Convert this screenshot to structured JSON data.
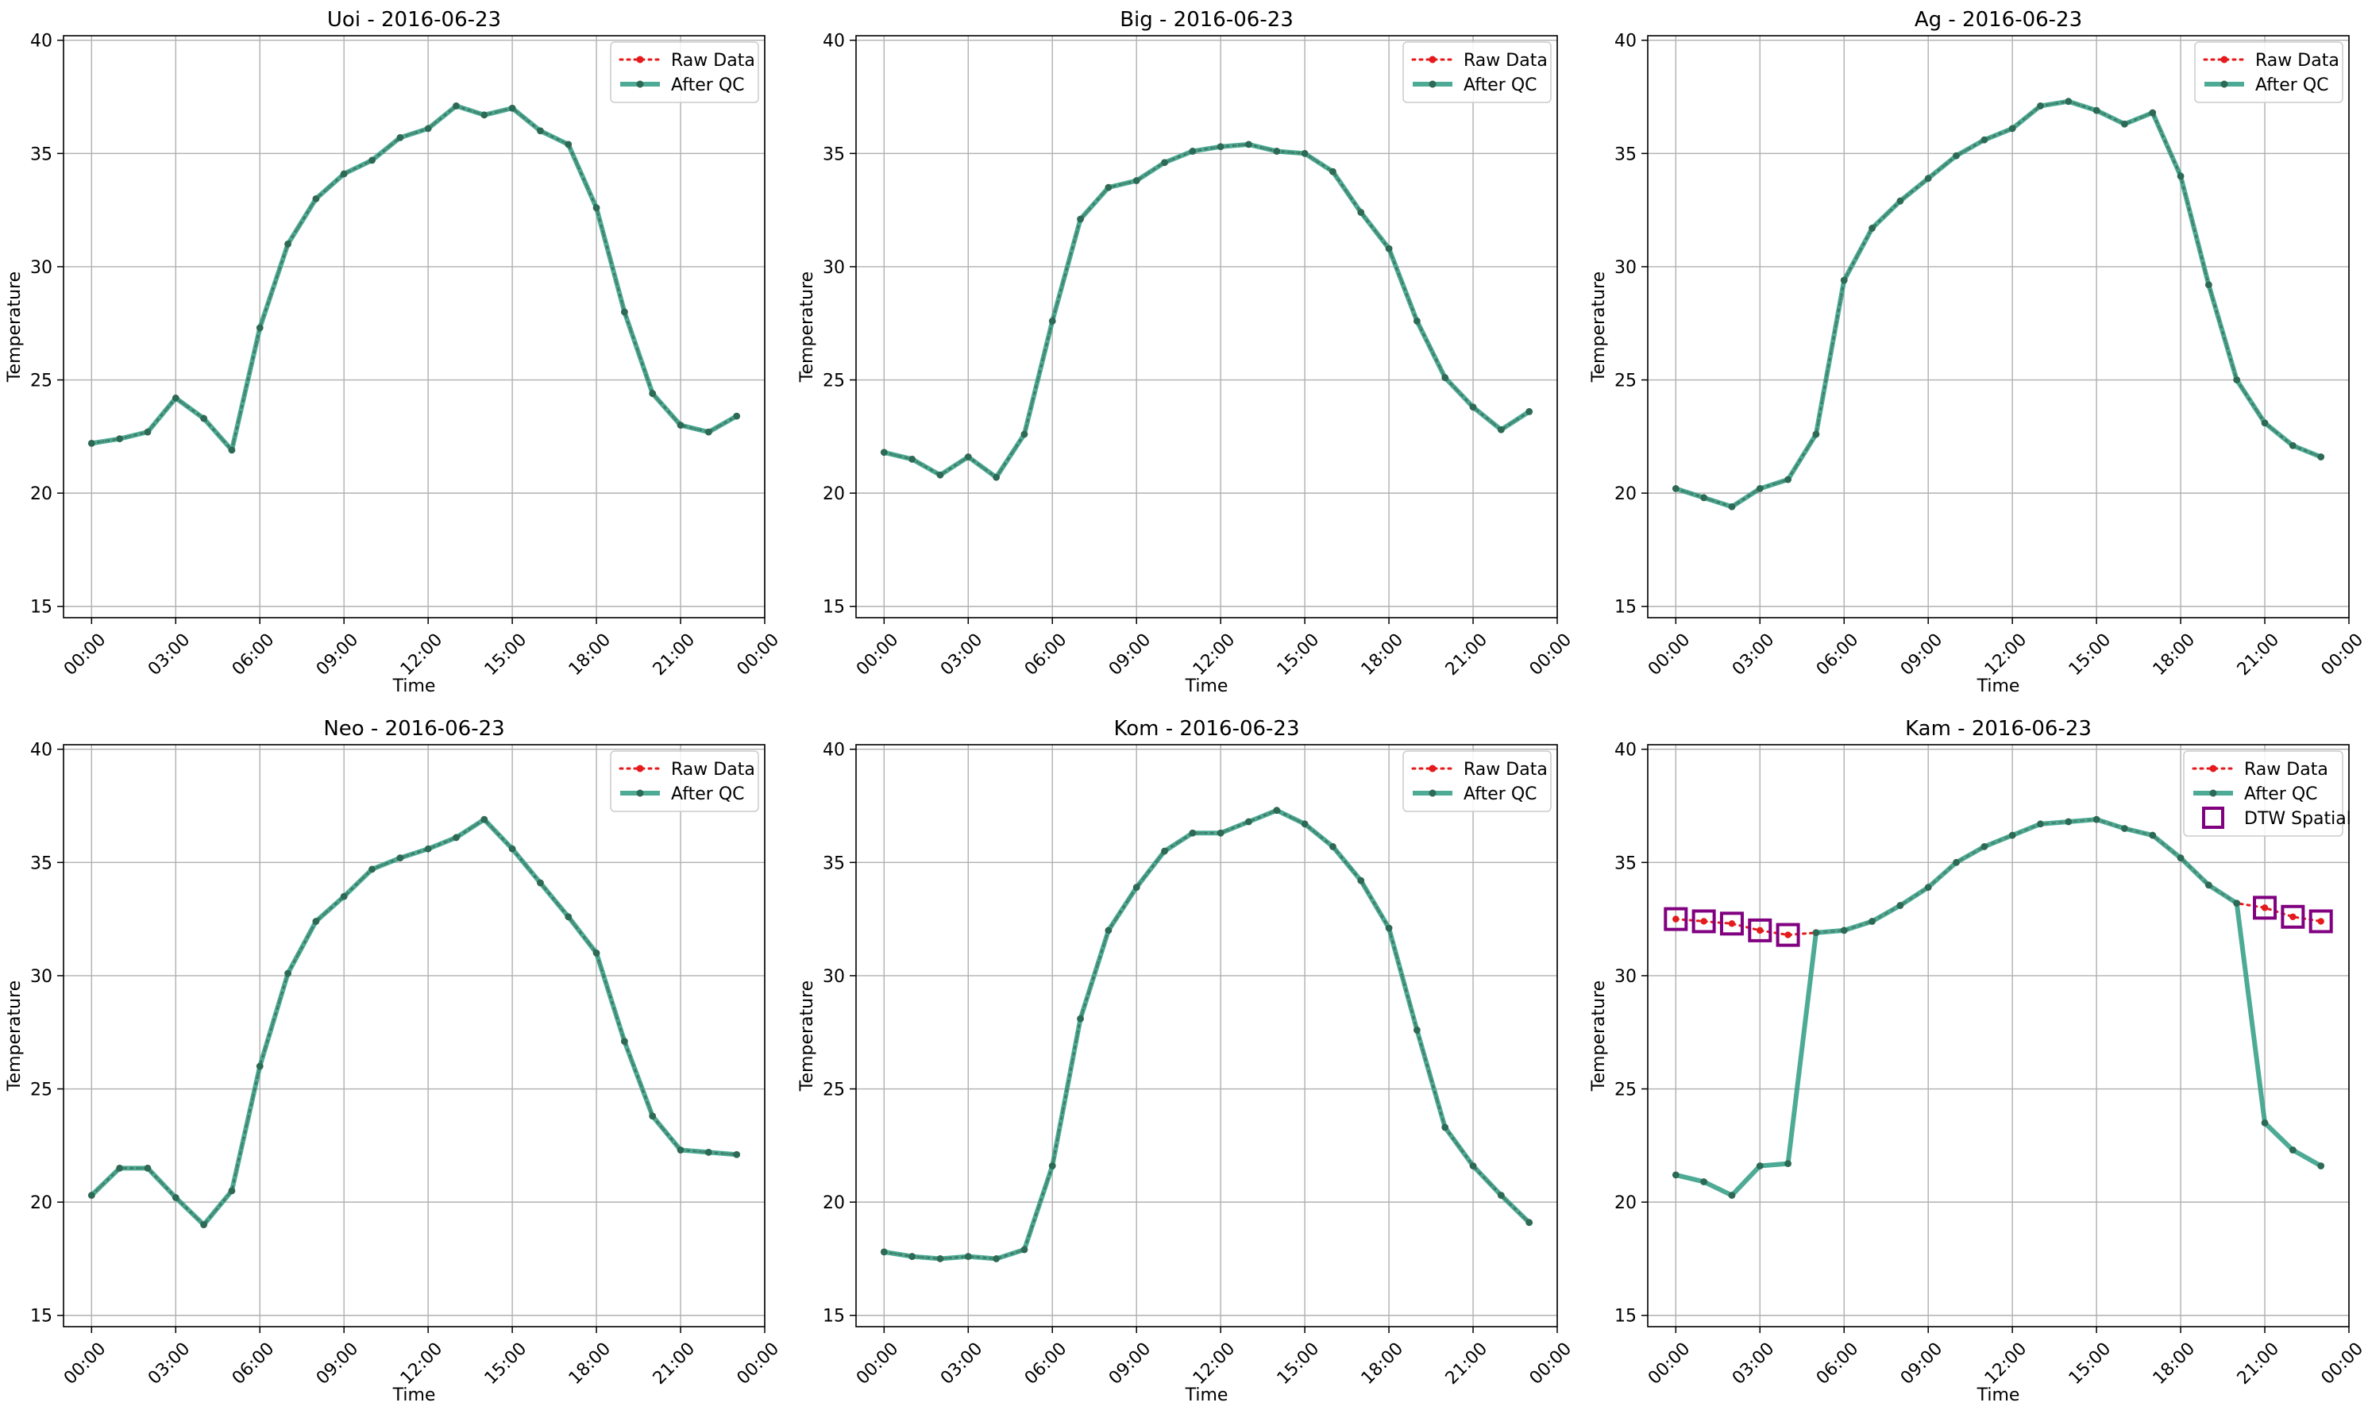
{
  "legend_labels": {
    "raw": "Raw Data",
    "qc": "After QC",
    "dtw": "DTW Spatial"
  },
  "colors": {
    "raw": "#e41a1c",
    "qc": "#2e9c82",
    "qc_dot": "#2d6a55",
    "dtw": "#800080",
    "grid": "#b0b0b0"
  },
  "chart_data": [
    {
      "type": "line",
      "title": "Uoi - 2016-06-23",
      "xlabel": "Time",
      "ylabel": "Temperature",
      "xticks": [
        "00:00",
        "03:00",
        "06:00",
        "09:00",
        "12:00",
        "15:00",
        "18:00",
        "21:00",
        "00:00"
      ],
      "yticks": [
        15,
        20,
        25,
        30,
        35,
        40
      ],
      "xlim": [
        -1,
        24
      ],
      "ylim": [
        14.5,
        40.2
      ],
      "grid": true,
      "legend_position": "top-right",
      "x": [
        0,
        1,
        2,
        3,
        4,
        5,
        6,
        7,
        8,
        9,
        10,
        11,
        12,
        13,
        14,
        15,
        16,
        17,
        18,
        19,
        20,
        21,
        22,
        23
      ],
      "series": [
        {
          "name": "Raw Data",
          "values": [
            22.2,
            22.4,
            22.7,
            24.2,
            23.3,
            21.9,
            27.3,
            31.0,
            33.0,
            34.1,
            34.7,
            35.7,
            36.1,
            37.1,
            36.7,
            37.0,
            36.0,
            35.4,
            32.6,
            28.0,
            24.4,
            23.0,
            22.7,
            23.4
          ]
        },
        {
          "name": "After QC",
          "values": [
            22.2,
            22.4,
            22.7,
            24.2,
            23.3,
            21.9,
            27.3,
            31.0,
            33.0,
            34.1,
            34.7,
            35.7,
            36.1,
            37.1,
            36.7,
            37.0,
            36.0,
            35.4,
            32.6,
            28.0,
            24.4,
            23.0,
            22.7,
            23.4
          ]
        }
      ]
    },
    {
      "type": "line",
      "title": "Big - 2016-06-23",
      "xlabel": "Time",
      "ylabel": "Temperature",
      "xticks": [
        "00:00",
        "03:00",
        "06:00",
        "09:00",
        "12:00",
        "15:00",
        "18:00",
        "21:00",
        "00:00"
      ],
      "yticks": [
        15,
        20,
        25,
        30,
        35,
        40
      ],
      "xlim": [
        -1,
        24
      ],
      "ylim": [
        14.5,
        40.2
      ],
      "grid": true,
      "legend_position": "top-right",
      "x": [
        0,
        1,
        2,
        3,
        4,
        5,
        6,
        7,
        8,
        9,
        10,
        11,
        12,
        13,
        14,
        15,
        16,
        17,
        18,
        19,
        20,
        21,
        22,
        23
      ],
      "series": [
        {
          "name": "Raw Data",
          "values": [
            21.8,
            21.5,
            20.8,
            21.6,
            20.7,
            22.6,
            27.6,
            32.1,
            33.5,
            33.8,
            34.6,
            35.1,
            35.3,
            35.4,
            35.1,
            35.0,
            34.2,
            32.4,
            30.8,
            27.6,
            25.1,
            23.8,
            22.8,
            23.6
          ]
        },
        {
          "name": "After QC",
          "values": [
            21.8,
            21.5,
            20.8,
            21.6,
            20.7,
            22.6,
            27.6,
            32.1,
            33.5,
            33.8,
            34.6,
            35.1,
            35.3,
            35.4,
            35.1,
            35.0,
            34.2,
            32.4,
            30.8,
            27.6,
            25.1,
            23.8,
            22.8,
            23.6
          ]
        }
      ]
    },
    {
      "type": "line",
      "title": "Ag - 2016-06-23",
      "xlabel": "Time",
      "ylabel": "Temperature",
      "xticks": [
        "00:00",
        "03:00",
        "06:00",
        "09:00",
        "12:00",
        "15:00",
        "18:00",
        "21:00",
        "00:00"
      ],
      "yticks": [
        15,
        20,
        25,
        30,
        35,
        40
      ],
      "xlim": [
        -1,
        24
      ],
      "ylim": [
        14.5,
        40.2
      ],
      "grid": true,
      "legend_position": "top-right",
      "x": [
        0,
        1,
        2,
        3,
        4,
        5,
        6,
        7,
        8,
        9,
        10,
        11,
        12,
        13,
        14,
        15,
        16,
        17,
        18,
        19,
        20,
        21,
        22,
        23
      ],
      "series": [
        {
          "name": "Raw Data",
          "values": [
            20.2,
            19.8,
            19.4,
            20.2,
            20.6,
            22.6,
            29.4,
            31.7,
            32.9,
            33.9,
            34.9,
            35.6,
            36.1,
            37.1,
            37.3,
            36.9,
            36.3,
            36.8,
            34.0,
            29.2,
            25.0,
            23.1,
            22.1,
            21.6
          ]
        },
        {
          "name": "After QC",
          "values": [
            20.2,
            19.8,
            19.4,
            20.2,
            20.6,
            22.6,
            29.4,
            31.7,
            32.9,
            33.9,
            34.9,
            35.6,
            36.1,
            37.1,
            37.3,
            36.9,
            36.3,
            36.8,
            34.0,
            29.2,
            25.0,
            23.1,
            22.1,
            21.6
          ]
        }
      ]
    },
    {
      "type": "line",
      "title": "Neo - 2016-06-23",
      "xlabel": "Time",
      "ylabel": "Temperature",
      "xticks": [
        "00:00",
        "03:00",
        "06:00",
        "09:00",
        "12:00",
        "15:00",
        "18:00",
        "21:00",
        "00:00"
      ],
      "yticks": [
        15,
        20,
        25,
        30,
        35,
        40
      ],
      "xlim": [
        -1,
        24
      ],
      "ylim": [
        14.5,
        40.2
      ],
      "grid": true,
      "legend_position": "top-right",
      "x": [
        0,
        1,
        2,
        3,
        4,
        5,
        6,
        7,
        8,
        9,
        10,
        11,
        12,
        13,
        14,
        15,
        16,
        17,
        18,
        19,
        20,
        21,
        22,
        23
      ],
      "series": [
        {
          "name": "Raw Data",
          "values": [
            20.3,
            21.5,
            21.5,
            20.2,
            19.0,
            20.5,
            26.0,
            30.1,
            32.4,
            33.5,
            34.7,
            35.2,
            35.6,
            36.1,
            36.9,
            35.6,
            34.1,
            32.6,
            31.0,
            27.1,
            23.8,
            22.3,
            22.2,
            22.1
          ]
        },
        {
          "name": "After QC",
          "values": [
            20.3,
            21.5,
            21.5,
            20.2,
            19.0,
            20.5,
            26.0,
            30.1,
            32.4,
            33.5,
            34.7,
            35.2,
            35.6,
            36.1,
            36.9,
            35.6,
            34.1,
            32.6,
            31.0,
            27.1,
            23.8,
            22.3,
            22.2,
            22.1
          ]
        }
      ]
    },
    {
      "type": "line",
      "title": "Kom - 2016-06-23",
      "xlabel": "Time",
      "ylabel": "Temperature",
      "xticks": [
        "00:00",
        "03:00",
        "06:00",
        "09:00",
        "12:00",
        "15:00",
        "18:00",
        "21:00",
        "00:00"
      ],
      "yticks": [
        15,
        20,
        25,
        30,
        35,
        40
      ],
      "xlim": [
        -1,
        24
      ],
      "ylim": [
        14.5,
        40.2
      ],
      "grid": true,
      "legend_position": "top-right",
      "x": [
        0,
        1,
        2,
        3,
        4,
        5,
        6,
        7,
        8,
        9,
        10,
        11,
        12,
        13,
        14,
        15,
        16,
        17,
        18,
        19,
        20,
        21,
        22,
        23
      ],
      "series": [
        {
          "name": "Raw Data",
          "values": [
            17.8,
            17.6,
            17.5,
            17.6,
            17.5,
            17.9,
            21.6,
            28.1,
            32.0,
            33.9,
            35.5,
            36.3,
            36.3,
            36.8,
            37.3,
            36.7,
            35.7,
            34.2,
            32.1,
            27.6,
            23.3,
            21.6,
            20.3,
            19.1
          ]
        },
        {
          "name": "After QC",
          "values": [
            17.8,
            17.6,
            17.5,
            17.6,
            17.5,
            17.9,
            21.6,
            28.1,
            32.0,
            33.9,
            35.5,
            36.3,
            36.3,
            36.8,
            37.3,
            36.7,
            35.7,
            34.2,
            32.1,
            27.6,
            23.3,
            21.6,
            20.3,
            19.1
          ]
        }
      ]
    },
    {
      "type": "line",
      "title": "Kam - 2016-06-23",
      "xlabel": "Time",
      "ylabel": "Temperature",
      "xticks": [
        "00:00",
        "03:00",
        "06:00",
        "09:00",
        "12:00",
        "15:00",
        "18:00",
        "21:00",
        "00:00"
      ],
      "yticks": [
        15,
        20,
        25,
        30,
        35,
        40
      ],
      "xlim": [
        -1,
        24
      ],
      "ylim": [
        14.5,
        40.2
      ],
      "grid": true,
      "legend_position": "top-right",
      "x": [
        0,
        1,
        2,
        3,
        4,
        5,
        6,
        7,
        8,
        9,
        10,
        11,
        12,
        13,
        14,
        15,
        16,
        17,
        18,
        19,
        20,
        21,
        22,
        23
      ],
      "series": [
        {
          "name": "Raw Data",
          "values": [
            32.5,
            32.4,
            32.3,
            32.0,
            31.8,
            31.9,
            32.0,
            32.4,
            33.1,
            33.9,
            35.0,
            35.7,
            36.2,
            36.7,
            36.8,
            36.9,
            36.5,
            36.2,
            35.2,
            34.0,
            33.2,
            33.0,
            32.6,
            32.4
          ]
        },
        {
          "name": "After QC",
          "values": [
            21.2,
            20.9,
            20.3,
            21.6,
            21.7,
            31.9,
            32.0,
            32.4,
            33.1,
            33.9,
            35.0,
            35.7,
            36.2,
            36.7,
            36.8,
            36.9,
            36.5,
            36.2,
            35.2,
            34.0,
            33.2,
            23.5,
            22.3,
            21.6
          ]
        }
      ],
      "dtw_spatial_points": {
        "name": "DTW Spatial",
        "x": [
          0,
          1,
          2,
          3,
          4,
          21,
          22,
          23
        ],
        "values": [
          32.5,
          32.4,
          32.3,
          32.0,
          31.8,
          33.0,
          32.6,
          32.4
        ]
      }
    }
  ]
}
